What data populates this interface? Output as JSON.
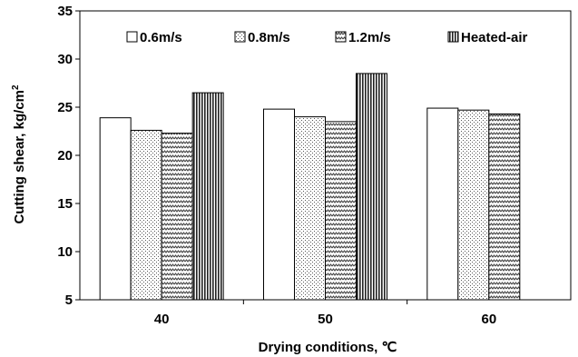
{
  "chart_data": {
    "type": "bar",
    "categories": [
      "40",
      "50",
      "60"
    ],
    "series": [
      {
        "name": "0.6m/s",
        "values": [
          23.9,
          24.8,
          24.9
        ],
        "pattern": "solid-white"
      },
      {
        "name": "0.8m/s",
        "values": [
          22.6,
          24.0,
          24.7
        ],
        "pattern": "dots"
      },
      {
        "name": "1.2m/s",
        "values": [
          22.3,
          23.5,
          24.3
        ],
        "pattern": "zigzag"
      },
      {
        "name": "Heated-air",
        "values": [
          26.5,
          28.5,
          null
        ],
        "pattern": "vertical-lines"
      }
    ],
    "xlabel": "Drying conditions, ℃",
    "ylabel": "Cutting shear, kg/cm",
    "ylabel_superscript": "2",
    "ylim": [
      5,
      35
    ],
    "yticks": [
      5,
      10,
      15,
      20,
      25,
      30,
      35
    ],
    "grid": false,
    "legend_position": "top"
  }
}
